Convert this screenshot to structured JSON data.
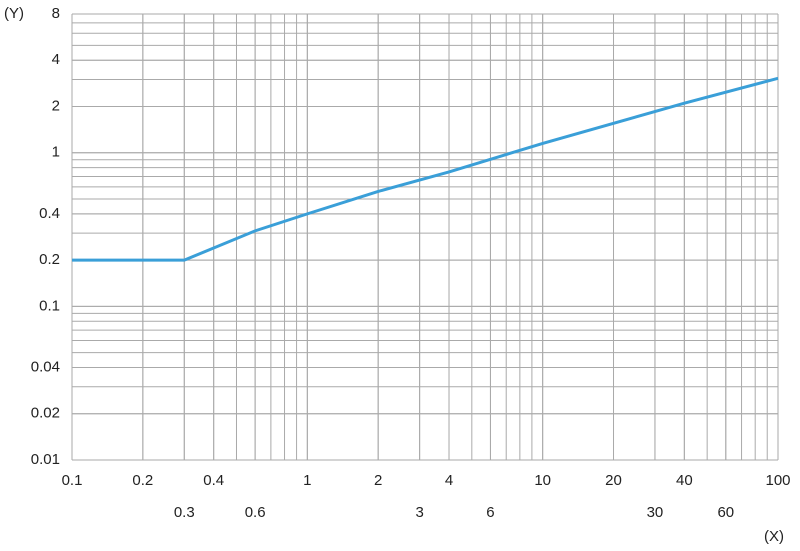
{
  "chart_data": {
    "type": "line",
    "xlabel": "(X)",
    "ylabel": "(Y)",
    "log_x": true,
    "log_y": true,
    "grid": true,
    "minor_grid": true,
    "xlim": [
      0.1,
      100
    ],
    "ylim": [
      0.01,
      8
    ],
    "xticks": [
      0.1,
      0.2,
      0.3,
      0.4,
      0.6,
      1,
      2,
      3,
      4,
      6,
      10,
      20,
      30,
      40,
      60,
      100
    ],
    "yticks": [
      0.01,
      0.02,
      0.04,
      0.1,
      0.2,
      0.4,
      1,
      2,
      4,
      8
    ],
    "series": [
      {
        "color": "#3a9fd8",
        "x": [
          0.1,
          0.3,
          0.6,
          1,
          2,
          4,
          10,
          40,
          100
        ],
        "values": [
          0.2,
          0.2,
          0.31,
          0.4,
          0.56,
          0.75,
          1.15,
          2.1,
          3.05
        ]
      }
    ]
  }
}
